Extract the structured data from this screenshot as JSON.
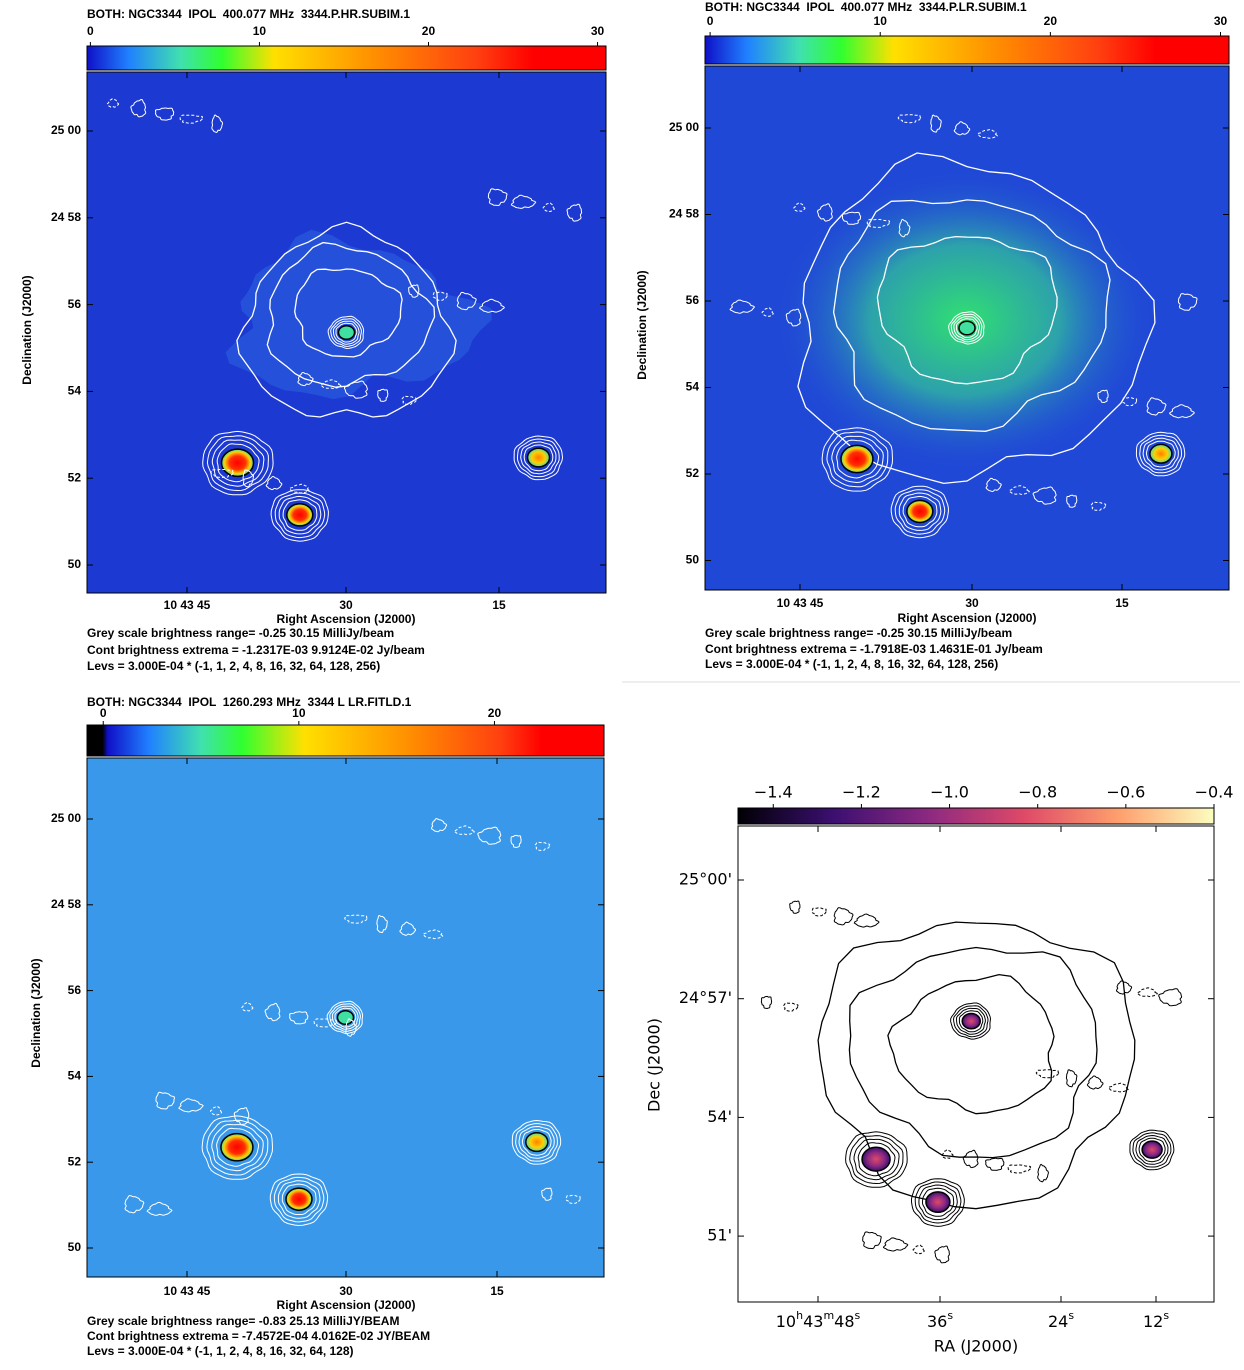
{
  "panels": [
    {
      "title": "BOTH: NGC3344  IPOL  400.077 MHz  3344.P.HR.SUBIM.1",
      "colorbar": {
        "lim": [
          -0.2,
          30.5
        ],
        "ticks": [
          0,
          10,
          20,
          30
        ]
      },
      "y_label": "Declination (J2000)",
      "y_ticks": [
        "25 00",
        "24 58",
        "56",
        "54",
        "52",
        "50"
      ],
      "x_label": "Right Ascension (J2000)",
      "x_ticks": [
        "10 43 45",
        "30",
        "15"
      ],
      "footer": [
        "Grey scale brightness range= -0.25 30.15 MilliJy/beam",
        "Cont brightness extrema = -1.2317E-03 9.9124E-02 Jy/beam",
        "Levs = 3.000E-04 * (-1, 1, 2, 4, 8, 16, 32, 64, 128, 256)"
      ]
    },
    {
      "title": "BOTH: NGC3344  IPOL  400.077 MHz  3344.P.LR.SUBIM.1",
      "colorbar": {
        "lim": [
          -0.3,
          30.5
        ],
        "ticks": [
          0,
          10,
          20,
          30
        ]
      },
      "y_label": "Declination (J2000)",
      "y_ticks": [
        "25 00",
        "24 58",
        "56",
        "54",
        "52",
        "50"
      ],
      "x_label": "Right Ascension (J2000)",
      "x_ticks": [
        "10 43 45",
        "30",
        "15"
      ],
      "footer": [
        "Grey scale brightness range= -0.25 30.15 MilliJy/beam",
        "Cont brightness extrema = -1.7918E-03 1.4631E-01 Jy/beam",
        "Levs = 3.000E-04 * (-1, 1, 2, 4, 8, 16, 32, 64, 128, 256)"
      ]
    },
    {
      "title": "BOTH: NGC3344  IPOL  1260.293 MHz  3344 L LR.FITLD.1",
      "colorbar": {
        "lim": [
          -0.83,
          25.6
        ],
        "ticks": [
          0,
          10,
          20
        ]
      },
      "y_label": "Declination (J2000)",
      "y_ticks": [
        "25 00",
        "24 58",
        "56",
        "54",
        "52",
        "50"
      ],
      "x_label": "Right Ascension (J2000)",
      "x_ticks": [
        "10 43 45",
        "30",
        "15"
      ],
      "footer": [
        "Grey scale brightness range= -0.83 25.13 MilliJY/BEAM",
        "Cont brightness extrema = -7.4572E-04 4.0162E-02 JY/BEAM",
        "Levs = 3.000E-04 * (-1, 1, 2, 4, 8, 16, 32, 64, 128)"
      ]
    },
    {
      "colorbar": {
        "lim": [
          -1.48,
          -0.4
        ],
        "ticks": [
          {
            "value": -1.4,
            "label": "−1.4"
          },
          {
            "value": -1.2,
            "label": "−1.2"
          },
          {
            "value": -1.0,
            "label": "−1.0"
          },
          {
            "value": -0.8,
            "label": "−0.8"
          },
          {
            "value": -0.6,
            "label": "−0.6"
          },
          {
            "value": -0.4,
            "label": "−0.4"
          }
        ]
      },
      "y_label": "Dec (J2000)",
      "y_ticks": [
        "25°00'",
        "24°57'",
        "54'",
        "51'"
      ],
      "x_label": "RA (J2000)",
      "x_ticks": [
        [
          "10",
          "h",
          "43",
          "m",
          "48",
          "s"
        ],
        [
          "36",
          "s"
        ],
        [
          "24",
          "s"
        ],
        [
          "12",
          "s"
        ]
      ]
    }
  ]
}
